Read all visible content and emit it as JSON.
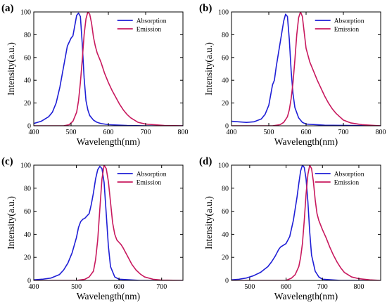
{
  "chart_data": [
    {
      "panel": "(a)",
      "type": "line",
      "xlabel": "Wavelength(nm)",
      "ylabel": "Intensity(a.u.)",
      "xlim": [
        400,
        800
      ],
      "ylim": [
        0,
        100
      ],
      "xticks": [
        400,
        500,
        600,
        700,
        800
      ],
      "yticks": [
        0,
        20,
        40,
        60,
        80,
        100
      ],
      "grid": false,
      "legend_position": "top-right",
      "series": [
        {
          "name": "Absorption",
          "color": "#1f1fd6",
          "x": [
            400,
            420,
            440,
            450,
            460,
            470,
            480,
            490,
            500,
            505,
            510,
            515,
            520,
            525,
            530,
            535,
            540,
            545,
            550,
            560,
            570,
            580,
            600,
            650,
            700,
            800
          ],
          "y": [
            2,
            4,
            8,
            12,
            20,
            34,
            52,
            70,
            77,
            79,
            88,
            97,
            99,
            96,
            72,
            42,
            22,
            14,
            9,
            5,
            3,
            2,
            1,
            0.3,
            0,
            0
          ]
        },
        {
          "name": "Emission",
          "color": "#c8195e",
          "x": [
            400,
            480,
            495,
            505,
            515,
            520,
            525,
            530,
            535,
            540,
            545,
            550,
            555,
            560,
            565,
            570,
            580,
            590,
            600,
            610,
            620,
            630,
            640,
            650,
            660,
            670,
            680,
            700,
            750,
            800
          ],
          "y": [
            0,
            0,
            1,
            4,
            12,
            22,
            38,
            58,
            80,
            94,
            100,
            98,
            90,
            78,
            70,
            64,
            56,
            46,
            38,
            31,
            25,
            19,
            14,
            10,
            7,
            5,
            3,
            1.5,
            0.3,
            0
          ]
        }
      ]
    },
    {
      "panel": "(b)",
      "type": "line",
      "xlabel": "Wavelength(nm)",
      "ylabel": "Intensity(a.u.)",
      "xlim": [
        400,
        800
      ],
      "ylim": [
        0,
        100
      ],
      "xticks": [
        400,
        500,
        600,
        700,
        800
      ],
      "yticks": [
        0,
        20,
        40,
        60,
        80,
        100
      ],
      "grid": false,
      "legend_position": "top-right",
      "series": [
        {
          "name": "Absorption",
          "color": "#1f1fd6",
          "x": [
            400,
            440,
            460,
            480,
            490,
            500,
            510,
            515,
            520,
            525,
            530,
            535,
            540,
            545,
            550,
            555,
            560,
            565,
            570,
            580,
            590,
            600,
            650,
            800
          ],
          "y": [
            4,
            3,
            3.5,
            6,
            10,
            18,
            36,
            40,
            52,
            62,
            72,
            82,
            92,
            98,
            96,
            76,
            48,
            28,
            16,
            7,
            3,
            1.5,
            0.5,
            0
          ]
        },
        {
          "name": "Emission",
          "color": "#c8195e",
          "x": [
            400,
            510,
            530,
            540,
            550,
            555,
            560,
            565,
            570,
            575,
            580,
            585,
            590,
            595,
            600,
            610,
            620,
            630,
            640,
            650,
            660,
            670,
            680,
            690,
            700,
            720,
            750,
            800
          ],
          "y": [
            0,
            0,
            1,
            3,
            8,
            14,
            24,
            38,
            58,
            80,
            95,
            100,
            96,
            82,
            68,
            56,
            48,
            40,
            33,
            26,
            20,
            15,
            11,
            8,
            5,
            2.5,
            1,
            0
          ]
        }
      ]
    },
    {
      "panel": "(c)",
      "type": "line",
      "xlabel": "Wavelength(nm)",
      "ylabel": "Intensity(a.u.)",
      "xlim": [
        400,
        750
      ],
      "ylim": [
        0,
        100
      ],
      "xticks": [
        400,
        500,
        600,
        700
      ],
      "yticks": [
        0,
        20,
        40,
        60,
        80,
        100
      ],
      "grid": false,
      "legend_position": "top-right",
      "series": [
        {
          "name": "Absorption",
          "color": "#1f1fd6",
          "x": [
            400,
            420,
            440,
            460,
            470,
            480,
            490,
            500,
            505,
            510,
            515,
            520,
            530,
            535,
            540,
            545,
            550,
            555,
            560,
            565,
            570,
            575,
            580,
            590,
            600,
            650,
            750
          ],
          "y": [
            0.5,
            1,
            2,
            5,
            9,
            15,
            24,
            37,
            46,
            51,
            53,
            54,
            58,
            66,
            76,
            88,
            96,
            99,
            97,
            85,
            58,
            30,
            12,
            3,
            1,
            0,
            0
          ]
        },
        {
          "name": "Emission",
          "color": "#c8195e",
          "x": [
            400,
            500,
            520,
            530,
            540,
            545,
            550,
            555,
            560,
            565,
            570,
            575,
            580,
            585,
            590,
            595,
            600,
            605,
            610,
            620,
            630,
            640,
            650,
            660,
            680,
            700,
            750
          ],
          "y": [
            0,
            0,
            1,
            3,
            8,
            18,
            35,
            62,
            88,
            100,
            97,
            86,
            68,
            50,
            40,
            35,
            33,
            31,
            28,
            21,
            14,
            9,
            5.5,
            3,
            1,
            0.3,
            0
          ]
        }
      ]
    },
    {
      "panel": "(d)",
      "type": "line",
      "xlabel": "Wavelength(nm)",
      "ylabel": "Intensity(a.u.)",
      "xlim": [
        450,
        860
      ],
      "ylim": [
        0,
        100
      ],
      "xticks": [
        500,
        600,
        700,
        800
      ],
      "yticks": [
        0,
        20,
        40,
        60,
        80,
        100
      ],
      "grid": false,
      "legend_position": "top-right",
      "series": [
        {
          "name": "Absorption",
          "color": "#1f1fd6",
          "x": [
            450,
            470,
            490,
            510,
            530,
            550,
            560,
            570,
            580,
            585,
            590,
            600,
            610,
            620,
            630,
            635,
            640,
            645,
            650,
            655,
            660,
            665,
            670,
            680,
            690,
            700,
            750,
            860
          ],
          "y": [
            0.5,
            1,
            2,
            4,
            7,
            12,
            16,
            21,
            27,
            29,
            30,
            32,
            38,
            52,
            72,
            84,
            95,
            100,
            98,
            88,
            68,
            42,
            22,
            8,
            3,
            1,
            0,
            0
          ]
        },
        {
          "name": "Emission",
          "color": "#c8195e",
          "x": [
            450,
            600,
            615,
            625,
            635,
            640,
            645,
            650,
            655,
            660,
            665,
            670,
            675,
            680,
            685,
            690,
            700,
            710,
            720,
            730,
            740,
            750,
            760,
            780,
            800,
            830,
            860
          ],
          "y": [
            0,
            0,
            2,
            5,
            12,
            20,
            32,
            52,
            75,
            92,
            100,
            97,
            86,
            70,
            58,
            52,
            44,
            37,
            29,
            22,
            16,
            11,
            7,
            3,
            1.5,
            0.5,
            0
          ]
        }
      ]
    }
  ]
}
